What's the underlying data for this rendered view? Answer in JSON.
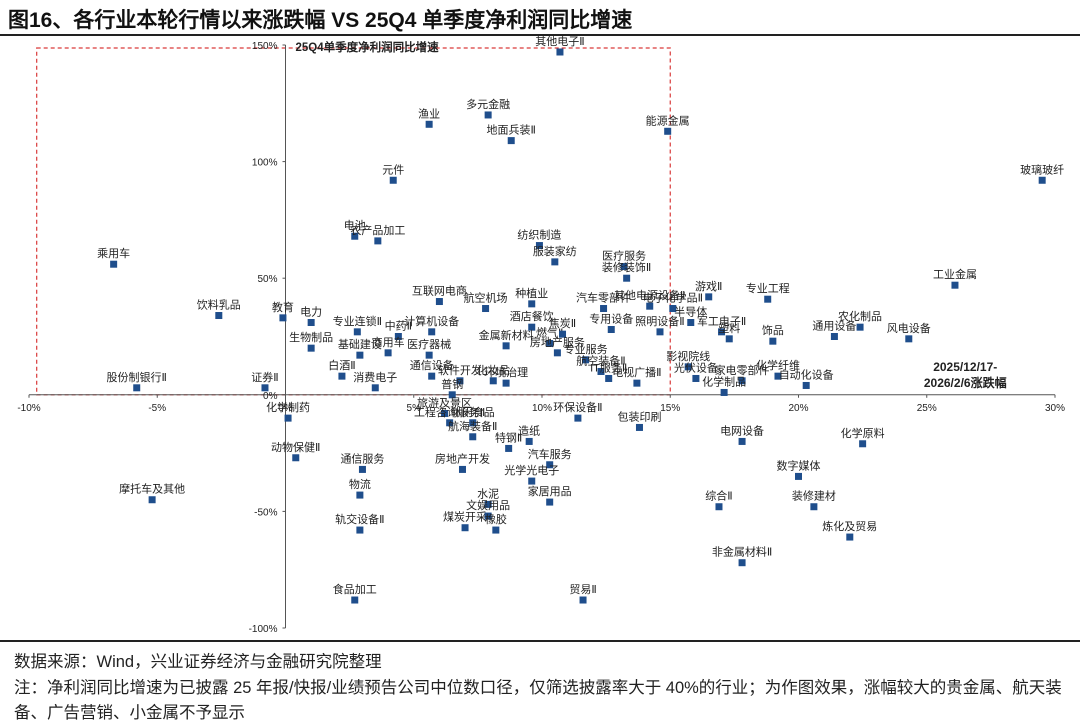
{
  "title": "图16、各行业本轮行情以来涨跌幅  VS 25Q4 单季度净利润同比增速",
  "source": "数据来源：Wind，兴业证券经济与金融研究院整理",
  "note": "注：净利润同比增速为已披露 25 年报/快报/业绩预告公司中位数口径，仅筛选披露率大于 40%的行业；为作图效果，涨幅较大的贵金属、航天装备、广告营销、小金属不予显示",
  "chart_data": {
    "type": "scatter",
    "title": "",
    "xlabel": "2025/12/17-2026/2/6涨跌幅",
    "ylabel": "25Q4单季度净利润同比增速",
    "xlim": [
      -10,
      30
    ],
    "ylim": [
      -100,
      150
    ],
    "x_unit": "%",
    "y_unit": "%",
    "x_ticks": [
      "-10%",
      "-5%",
      "0%",
      "5%",
      "10%",
      "15%",
      "20%",
      "25%",
      "30%"
    ],
    "y_ticks": [
      "150%",
      "100%",
      "50%",
      "0%",
      "-50%",
      "-100%"
    ],
    "marker_color": "#1f4e8c",
    "highlight_box": {
      "x_range": [
        -9.7,
        15
      ],
      "y_range": [
        0,
        150
      ],
      "label": "25Q4单季度净利润同比增速"
    },
    "annotation": [
      "2025/12/17-",
      "2026/2/6涨跌幅"
    ],
    "points": [
      {
        "name": "其他电子Ⅱ",
        "x": 10.7,
        "y": 147
      },
      {
        "name": "多元金融",
        "x": 7.9,
        "y": 120
      },
      {
        "name": "渔业",
        "x": 5.6,
        "y": 116
      },
      {
        "name": "地面兵装Ⅱ",
        "x": 8.8,
        "y": 109
      },
      {
        "name": "能源金属",
        "x": 14.9,
        "y": 113
      },
      {
        "name": "元件",
        "x": 4.2,
        "y": 92
      },
      {
        "name": "玻璃玻纤",
        "x": 29.5,
        "y": 92
      },
      {
        "name": "电池",
        "x": 2.7,
        "y": 68
      },
      {
        "name": "农产品加工",
        "x": 3.6,
        "y": 66
      },
      {
        "name": "纺织制造",
        "x": 9.9,
        "y": 64
      },
      {
        "name": "服装家纺",
        "x": 10.5,
        "y": 57
      },
      {
        "name": "医疗服务",
        "x": 13.2,
        "y": 55
      },
      {
        "name": "乘用车",
        "x": -6.7,
        "y": 56
      },
      {
        "name": "装修装饰Ⅱ",
        "x": 13.3,
        "y": 50
      },
      {
        "name": "工业金属",
        "x": 26.1,
        "y": 47
      },
      {
        "name": "游戏Ⅱ",
        "x": 16.5,
        "y": 42
      },
      {
        "name": "专业工程",
        "x": 18.8,
        "y": 41
      },
      {
        "name": "互联网电商",
        "x": 6.0,
        "y": 40
      },
      {
        "name": "航空机场",
        "x": 7.8,
        "y": 37
      },
      {
        "name": "种植业",
        "x": 9.6,
        "y": 39
      },
      {
        "name": "汽车零部件",
        "x": 12.4,
        "y": 37
      },
      {
        "name": "其他电源设备Ⅱ",
        "x": 14.2,
        "y": 38
      },
      {
        "name": "电子化学品Ⅱ",
        "x": 15.1,
        "y": 37
      },
      {
        "name": "饮料乳品",
        "x": -2.6,
        "y": 34
      },
      {
        "name": "教育",
        "x": -0.1,
        "y": 33
      },
      {
        "name": "电力",
        "x": 1.0,
        "y": 31
      },
      {
        "name": "专用设备",
        "x": 12.7,
        "y": 28
      },
      {
        "name": "酒店餐饮",
        "x": 9.6,
        "y": 29
      },
      {
        "name": "半导体",
        "x": 15.8,
        "y": 31
      },
      {
        "name": "农化制品",
        "x": 22.4,
        "y": 29
      },
      {
        "name": "军工电子Ⅱ",
        "x": 17.0,
        "y": 27
      },
      {
        "name": "专业连锁Ⅱ",
        "x": 2.8,
        "y": 27
      },
      {
        "name": "中药Ⅱ",
        "x": 4.4,
        "y": 25
      },
      {
        "name": "计算机设备",
        "x": 5.7,
        "y": 27
      },
      {
        "name": "燃气Ⅱ",
        "x": 10.3,
        "y": 22
      },
      {
        "name": "焦炭Ⅱ",
        "x": 10.8,
        "y": 26
      },
      {
        "name": "照明设备Ⅱ",
        "x": 14.6,
        "y": 27
      },
      {
        "name": "塑料",
        "x": 17.3,
        "y": 24
      },
      {
        "name": "饰品",
        "x": 19.0,
        "y": 23
      },
      {
        "name": "通用设备",
        "x": 21.4,
        "y": 25
      },
      {
        "name": "风电设备",
        "x": 24.3,
        "y": 24
      },
      {
        "name": "医疗器械",
        "x": 5.6,
        "y": 17
      },
      {
        "name": "生物制品",
        "x": 1.0,
        "y": 20
      },
      {
        "name": "商用车",
        "x": 4.0,
        "y": 18
      },
      {
        "name": "专业服务",
        "x": 11.7,
        "y": 15
      },
      {
        "name": "基础建设",
        "x": 2.9,
        "y": 17
      },
      {
        "name": "金属新材料",
        "x": 8.6,
        "y": 21
      },
      {
        "name": "房地产服务",
        "x": 10.6,
        "y": 18
      },
      {
        "name": "影视院线",
        "x": 15.7,
        "y": 12
      },
      {
        "name": "通信设备",
        "x": 5.7,
        "y": 8
      },
      {
        "name": "化妆品",
        "x": 8.1,
        "y": 6
      },
      {
        "name": "航空装备Ⅱ",
        "x": 12.3,
        "y": 10
      },
      {
        "name": "光伏设备",
        "x": 16.0,
        "y": 7
      },
      {
        "name": "家电零部件",
        "x": 17.8,
        "y": 6
      },
      {
        "name": "化学纤维",
        "x": 19.2,
        "y": 8
      },
      {
        "name": "自动化设备",
        "x": 20.3,
        "y": 4
      },
      {
        "name": "股份制银行Ⅱ",
        "x": -5.8,
        "y": 3
      },
      {
        "name": "证券Ⅱ",
        "x": -0.8,
        "y": 3
      },
      {
        "name": "白酒Ⅱ",
        "x": 2.2,
        "y": 8
      },
      {
        "name": "消费电子",
        "x": 3.5,
        "y": 3
      },
      {
        "name": "软件开发",
        "x": 6.8,
        "y": 6
      },
      {
        "name": "环境治理",
        "x": 8.6,
        "y": 5
      },
      {
        "name": "IT服务Ⅱ",
        "x": 12.6,
        "y": 7
      },
      {
        "name": "电视广播Ⅱ",
        "x": 13.7,
        "y": 5
      },
      {
        "name": "普钢",
        "x": 6.5,
        "y": 0
      },
      {
        "name": "化学制品",
        "x": 17.1,
        "y": 1
      },
      {
        "name": "化学制药",
        "x": 0.1,
        "y": -10
      },
      {
        "name": "旅游及景区",
        "x": 6.2,
        "y": -8
      },
      {
        "name": "工程咨询服务Ⅱ",
        "x": 6.4,
        "y": -12
      },
      {
        "name": "休闲食品",
        "x": 7.3,
        "y": -12
      },
      {
        "name": "环保设备Ⅱ",
        "x": 11.4,
        "y": -10
      },
      {
        "name": "包装印刷",
        "x": 13.8,
        "y": -14
      },
      {
        "name": "造纸",
        "x": 9.5,
        "y": -20
      },
      {
        "name": "航海装备Ⅱ",
        "x": 7.3,
        "y": -18
      },
      {
        "name": "特钢Ⅱ",
        "x": 8.7,
        "y": -23
      },
      {
        "name": "电网设备",
        "x": 17.8,
        "y": -20
      },
      {
        "name": "化学原料",
        "x": 22.5,
        "y": -21
      },
      {
        "name": "动物保健Ⅱ",
        "x": 0.4,
        "y": -27
      },
      {
        "name": "通信服务",
        "x": 3.0,
        "y": -32
      },
      {
        "name": "房地产开发",
        "x": 6.9,
        "y": -32
      },
      {
        "name": "汽车服务",
        "x": 10.3,
        "y": -30
      },
      {
        "name": "数字媒体",
        "x": 20.0,
        "y": -35
      },
      {
        "name": "物流",
        "x": 2.9,
        "y": -43
      },
      {
        "name": "光学光电子",
        "x": 9.6,
        "y": -37
      },
      {
        "name": "摩托车及其他",
        "x": -5.2,
        "y": -45
      },
      {
        "name": "水泥",
        "x": 7.9,
        "y": -47
      },
      {
        "name": "家居用品",
        "x": 10.3,
        "y": -46
      },
      {
        "name": "综合Ⅱ",
        "x": 16.9,
        "y": -48
      },
      {
        "name": "装修建材",
        "x": 20.6,
        "y": -48
      },
      {
        "name": "煤炭开采",
        "x": 7.0,
        "y": -57
      },
      {
        "name": "文娱用品",
        "x": 7.9,
        "y": -52
      },
      {
        "name": "轨交设备Ⅱ",
        "x": 2.9,
        "y": -58
      },
      {
        "name": "橡胶",
        "x": 8.2,
        "y": -58
      },
      {
        "name": "炼化及贸易",
        "x": 22.0,
        "y": -61
      },
      {
        "name": "非金属材料Ⅱ",
        "x": 17.8,
        "y": -72
      },
      {
        "name": "食品加工",
        "x": 2.7,
        "y": -88
      },
      {
        "name": "贸易Ⅱ",
        "x": 11.6,
        "y": -88
      }
    ]
  }
}
